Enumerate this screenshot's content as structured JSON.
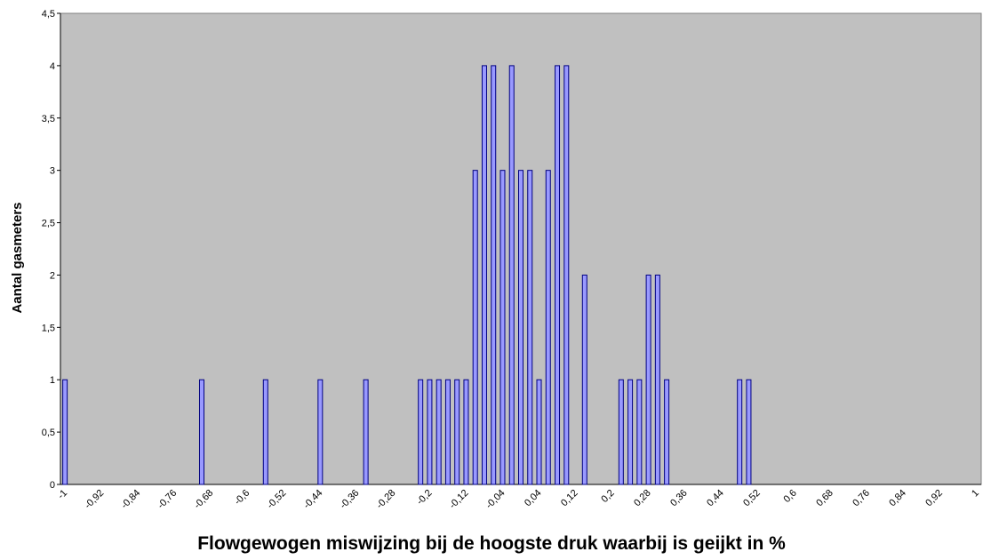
{
  "chart_data": {
    "type": "bar",
    "xlabel": "Flowgewogen miswijzing bij de hoogste druk waarbij is geijkt in %",
    "ylabel": "Aantal gasmeters",
    "categories": [
      "-1",
      null,
      null,
      null,
      "-0,92",
      null,
      null,
      null,
      "-0,84",
      null,
      null,
      null,
      "-0,76",
      null,
      null,
      null,
      "-0,68",
      null,
      null,
      null,
      "-0,6",
      null,
      null,
      null,
      "-0,52",
      null,
      null,
      null,
      "-0,44",
      null,
      null,
      null,
      "-0,36",
      null,
      null,
      null,
      "-0,28",
      null,
      null,
      null,
      "-0,2",
      null,
      null,
      null,
      "-0,12",
      null,
      null,
      null,
      "-0,04",
      null,
      null,
      null,
      "0,04",
      null,
      null,
      null,
      "0,12",
      null,
      null,
      null,
      "0,2",
      null,
      null,
      null,
      "0,28",
      null,
      null,
      null,
      "0,36",
      null,
      null,
      null,
      "0,44",
      null,
      null,
      null,
      "0,52",
      null,
      null,
      null,
      "0,6",
      null,
      null,
      null,
      "0,68",
      null,
      null,
      null,
      "0,76",
      null,
      null,
      null,
      "0,84",
      null,
      null,
      null,
      "0,92",
      null,
      null,
      null,
      "1"
    ],
    "values": [
      1,
      0,
      0,
      0,
      0,
      0,
      0,
      0,
      0,
      0,
      0,
      0,
      0,
      0,
      0,
      1,
      0,
      0,
      0,
      0,
      0,
      0,
      1,
      0,
      0,
      0,
      0,
      0,
      1,
      0,
      0,
      0,
      0,
      1,
      0,
      0,
      0,
      0,
      0,
      1,
      1,
      1,
      1,
      1,
      1,
      3,
      4,
      4,
      3,
      4,
      3,
      3,
      1,
      3,
      4,
      4,
      0,
      2,
      0,
      0,
      0,
      1,
      1,
      1,
      2,
      2,
      1,
      0,
      0,
      0,
      0,
      0,
      0,
      0,
      1,
      1,
      0,
      0,
      0,
      0,
      0,
      0,
      0,
      0,
      0,
      0,
      0,
      0,
      0,
      0,
      0,
      0,
      0,
      0,
      0,
      0,
      0,
      0,
      0,
      0,
      0
    ],
    "color": "#9999ff",
    "ylim": [
      0,
      4.5
    ],
    "yticks": [
      0,
      {
        "value": 0.5,
        "label": "0,5"
      },
      1,
      {
        "value": 1.5,
        "label": "1,5"
      },
      2,
      {
        "value": 2.5,
        "label": "2,5"
      },
      3,
      {
        "value": 3.5,
        "label": "3,5"
      },
      4,
      {
        "value": 4.5,
        "label": "4,5"
      }
    ],
    "grid": false
  }
}
